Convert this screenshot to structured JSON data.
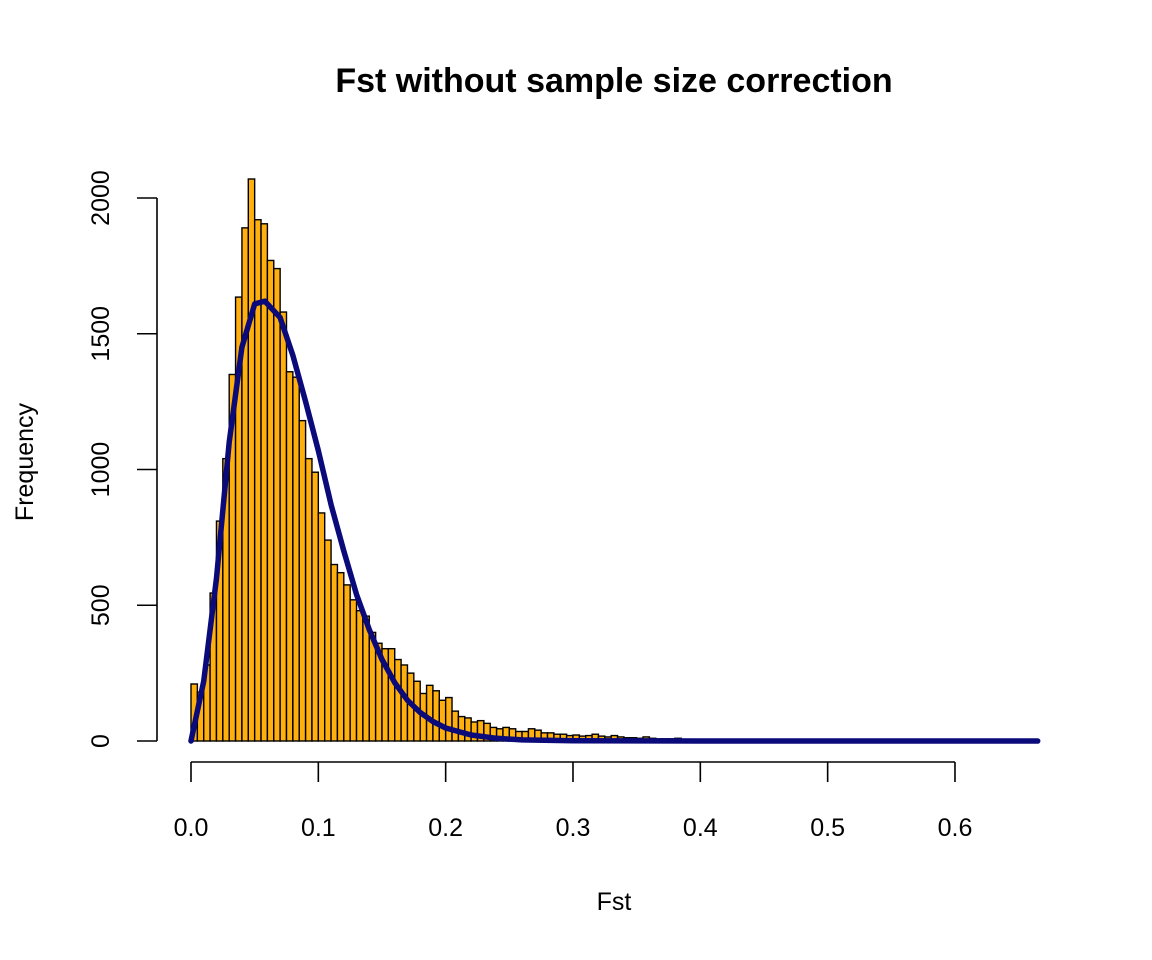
{
  "chart_data": {
    "type": "bar",
    "subtype": "histogram-with-density-curve",
    "title": "Fst without sample size correction",
    "xlabel": "Fst",
    "ylabel": "Frequency",
    "xlim": [
      0,
      0.665
    ],
    "ylim": [
      0,
      2000
    ],
    "x_ticks": [
      "0.0",
      "0.1",
      "0.2",
      "0.3",
      "0.4",
      "0.5",
      "0.6"
    ],
    "x_tick_values": [
      0,
      0.1,
      0.2,
      0.3,
      0.4,
      0.5,
      0.6
    ],
    "y_ticks": [
      "0",
      "500",
      "1000",
      "1500",
      "2000"
    ],
    "y_tick_values": [
      0,
      500,
      1000,
      1500,
      2000
    ],
    "bin_width": 0.005,
    "bin_start": 0,
    "values": [
      210,
      180,
      280,
      545,
      810,
      1040,
      1350,
      1635,
      1890,
      2070,
      1920,
      1905,
      1770,
      1740,
      1580,
      1360,
      1340,
      1180,
      1040,
      990,
      840,
      740,
      650,
      620,
      575,
      520,
      480,
      460,
      400,
      360,
      340,
      340,
      300,
      280,
      250,
      220,
      175,
      205,
      185,
      150,
      160,
      110,
      90,
      85,
      70,
      75,
      65,
      50,
      45,
      50,
      45,
      35,
      35,
      45,
      40,
      30,
      30,
      25,
      25,
      20,
      22,
      18,
      20,
      25,
      18,
      15,
      20,
      15,
      12,
      12,
      10,
      15,
      10,
      8,
      8,
      8,
      10,
      6,
      5,
      5,
      4,
      4,
      3,
      3,
      2,
      3,
      2,
      2,
      2,
      1,
      2,
      1,
      1,
      1,
      1,
      1,
      1,
      1,
      0,
      1,
      1,
      0,
      0,
      1,
      0,
      0,
      0,
      0,
      1,
      0,
      0,
      0,
      0,
      0,
      0,
      0,
      0,
      0,
      0,
      0,
      0,
      0,
      0,
      0,
      0,
      0,
      0,
      0,
      0,
      0,
      0
    ],
    "bar_color": "#FFB00F",
    "curve": {
      "color": "#0A0A7A",
      "x": [
        0,
        0.01,
        0.02,
        0.03,
        0.04,
        0.05,
        0.058,
        0.07,
        0.08,
        0.09,
        0.1,
        0.11,
        0.12,
        0.13,
        0.14,
        0.15,
        0.16,
        0.17,
        0.18,
        0.19,
        0.2,
        0.22,
        0.24,
        0.26,
        0.3,
        0.4,
        0.665
      ],
      "y": [
        0,
        220,
        600,
        1100,
        1450,
        1610,
        1620,
        1560,
        1420,
        1250,
        1070,
        870,
        700,
        540,
        410,
        300,
        215,
        150,
        105,
        72,
        48,
        22,
        10,
        4,
        1,
        0,
        0
      ]
    }
  }
}
